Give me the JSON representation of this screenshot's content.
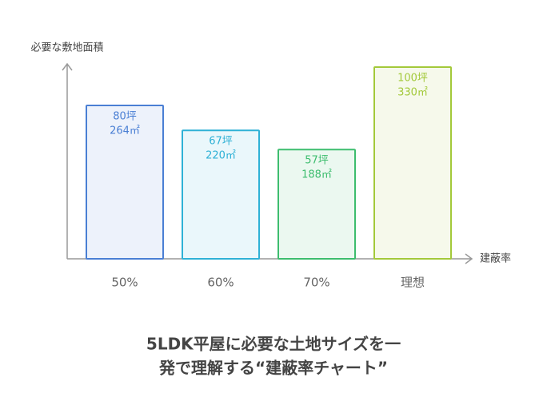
{
  "chart_data": {
    "type": "bar",
    "title_lines": [
      "5LDK平屋に必要な土地サイズを一",
      "発で理解する“建蔽率チャート”"
    ],
    "y_label": "必要な敷地面積",
    "x_label": "建蔽率",
    "categories": [
      "50%",
      "60%",
      "70%",
      "理想"
    ],
    "series": [
      {
        "values": [
          80,
          67,
          57,
          100
        ],
        "value_labels": [
          "80坪",
          "67坪",
          "57坪",
          "100坪"
        ],
        "area_labels": [
          "264㎡",
          "220㎡",
          "188㎡",
          "330㎡"
        ]
      }
    ],
    "colors": [
      "#4a7fd4",
      "#2fb1d6",
      "#3dbd6e",
      "#a3c93a"
    ],
    "ylim": [
      0,
      100
    ]
  }
}
